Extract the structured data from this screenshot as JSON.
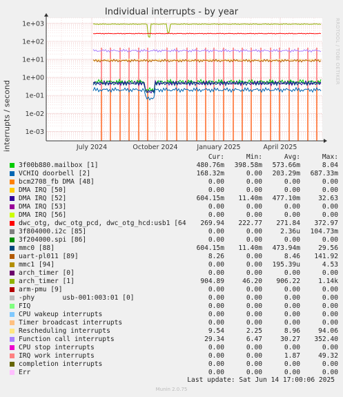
{
  "title": "Individual interrupts - by year",
  "ylabel": "interrupts / second",
  "side_label": "RRDTOOL / TOBI OETIKER",
  "legend_headers": [
    "Cur:",
    "Min:",
    "Avg:",
    "Max:"
  ],
  "legend": [
    {
      "name": "3f00b880.mailbox [1]",
      "color": "#00cc00",
      "cur": "480.76m",
      "min": "398.58m",
      "avg": "573.66m",
      "max": "8.04"
    },
    {
      "name": "VCHIQ doorbell [2]",
      "color": "#0066b3",
      "cur": "168.32m",
      "min": "0.00",
      "avg": "203.29m",
      "max": "687.33m"
    },
    {
      "name": "bcm2708_fb DMA [48]",
      "color": "#ff8000",
      "cur": "0.00",
      "min": "0.00",
      "avg": "0.00",
      "max": "0.00"
    },
    {
      "name": "DMA IRQ [50]",
      "color": "#ffcc00",
      "cur": "0.00",
      "min": "0.00",
      "avg": "0.00",
      "max": "0.00"
    },
    {
      "name": "DMA IRQ [52]",
      "color": "#330099",
      "cur": "604.15m",
      "min": "11.40m",
      "avg": "477.10m",
      "max": "32.63"
    },
    {
      "name": "DMA IRQ [53]",
      "color": "#990099",
      "cur": "0.00",
      "min": "0.00",
      "avg": "0.00",
      "max": "0.00"
    },
    {
      "name": "DMA IRQ [56]",
      "color": "#ccff00",
      "cur": "0.00",
      "min": "0.00",
      "avg": "0.00",
      "max": "0.00"
    },
    {
      "name": "dwc_otg, dwc_otg_pcd, dwc_otg_hcd:usb1 [64]",
      "color": "#ff0000",
      "cur": "269.94",
      "min": "222.77",
      "avg": "271.84",
      "max": "372.97"
    },
    {
      "name": "3f804000.i2c [85]",
      "color": "#808080",
      "cur": "0.00",
      "min": "0.00",
      "avg": "2.36u",
      "max": "104.73m"
    },
    {
      "name": "3f204000.spi [86]",
      "color": "#008f00",
      "cur": "0.00",
      "min": "0.00",
      "avg": "0.00",
      "max": "0.00"
    },
    {
      "name": "mmc0 [88]",
      "color": "#00487d",
      "cur": "604.15m",
      "min": "11.40m",
      "avg": "473.94m",
      "max": "29.56"
    },
    {
      "name": "uart-pl011 [89]",
      "color": "#b35a00",
      "cur": "8.26",
      "min": "0.00",
      "avg": "8.46",
      "max": "141.92"
    },
    {
      "name": "mmc1 [94]",
      "color": "#b38f00",
      "cur": "0.00",
      "min": "0.00",
      "avg": "195.39u",
      "max": "4.53"
    },
    {
      "name": "arch_timer [0]",
      "color": "#6b006b",
      "cur": "0.00",
      "min": "0.00",
      "avg": "0.00",
      "max": "0.00"
    },
    {
      "name": "arch_timer [1]",
      "color": "#8fb300",
      "cur": "904.89",
      "min": "46.20",
      "avg": "906.22",
      "max": "1.14k"
    },
    {
      "name": "arm-pmu [9]",
      "color": "#b30000",
      "cur": "0.00",
      "min": "0.00",
      "avg": "0.00",
      "max": "0.00"
    },
    {
      "name": "-phy       usb-001:003:01 [0]",
      "color": "#bebebe",
      "cur": "0.00",
      "min": "0.00",
      "avg": "0.00",
      "max": "0.00"
    },
    {
      "name": "FIQ",
      "color": "#80ff80",
      "cur": "0.00",
      "min": "0.00",
      "avg": "0.00",
      "max": "0.00"
    },
    {
      "name": "CPU wakeup interrupts",
      "color": "#80c9ff",
      "cur": "0.00",
      "min": "0.00",
      "avg": "0.00",
      "max": "0.00"
    },
    {
      "name": "Timer broadcast interrupts",
      "color": "#ffc080",
      "cur": "0.00",
      "min": "0.00",
      "avg": "0.00",
      "max": "0.00"
    },
    {
      "name": "Rescheduling interrupts",
      "color": "#ffe680",
      "cur": "9.54",
      "min": "2.25",
      "avg": "8.96",
      "max": "94.06"
    },
    {
      "name": "Function call interrupts",
      "color": "#aa80ff",
      "cur": "29.34",
      "min": "6.47",
      "avg": "30.27",
      "max": "352.40"
    },
    {
      "name": "CPU stop interrupts",
      "color": "#ee00cc",
      "cur": "0.00",
      "min": "0.00",
      "avg": "0.00",
      "max": "0.00"
    },
    {
      "name": "IRQ work interrupts",
      "color": "#ff8080",
      "cur": "0.00",
      "min": "0.00",
      "avg": "1.87",
      "max": "49.32"
    },
    {
      "name": "completion interrupts",
      "color": "#666600",
      "cur": "0.00",
      "min": "0.00",
      "avg": "0.00",
      "max": "0.00"
    },
    {
      "name": "Err",
      "color": "#ffbfff",
      "cur": "0.00",
      "min": "0.00",
      "avg": "0.00",
      "max": "0.00"
    }
  ],
  "last_update": "Last update:  Sat Jun 14 17:00:06 2025",
  "footer": "Munin 2.0.75",
  "chart_data": {
    "type": "line",
    "title": "Individual interrupts - by year",
    "ylabel": "interrupts / second",
    "yscale": "log",
    "ylim": [
      0.0003,
      2000
    ],
    "y_ticks": [
      {
        "value": 1000,
        "label": "1e+03"
      },
      {
        "value": 100,
        "label": "1e+02"
      },
      {
        "value": 10,
        "label": "1e+01"
      },
      {
        "value": 1,
        "label": "1e+00"
      },
      {
        "value": 0.1,
        "label": "1e-01"
      },
      {
        "value": 0.01,
        "label": "1e-02"
      },
      {
        "value": 0.001,
        "label": "1e-03"
      }
    ],
    "x_ticks": [
      "July 2024",
      "October 2024",
      "January 2025",
      "April 2025"
    ],
    "grid": true,
    "data_starts": "May 2024",
    "series": [
      {
        "name": "arch_timer [1]",
        "color": "#8fb300",
        "level": 906.22
      },
      {
        "name": "dwc_otg, dwc_otg_pcd, dwc_otg_hcd:usb1 [64]",
        "color": "#ff0000",
        "level": 271.84
      },
      {
        "name": "Function call interrupts",
        "color": "#aa80ff",
        "level": 30.27
      },
      {
        "name": "Rescheduling interrupts",
        "color": "#ffe680",
        "level": 8.96
      },
      {
        "name": "uart-pl011 [89]",
        "color": "#b35a00",
        "level": 8.46
      },
      {
        "name": "3f00b880.mailbox [1]",
        "color": "#00cc00",
        "level": 0.574
      },
      {
        "name": "DMA IRQ [52]",
        "color": "#330099",
        "level": 0.477
      },
      {
        "name": "mmc0 [88]",
        "color": "#00487d",
        "level": 0.474
      },
      {
        "name": "VCHIQ doorbell [2]",
        "color": "#0066b3",
        "level": 0.203
      }
    ]
  }
}
